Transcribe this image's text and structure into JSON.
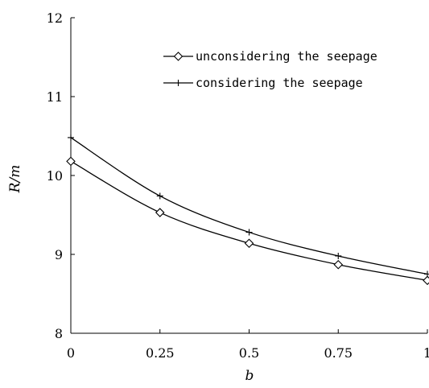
{
  "chart_data": {
    "type": "line",
    "xlabel": "b",
    "ylabel": "R/m",
    "xlim": [
      0,
      1
    ],
    "ylim": [
      8,
      12
    ],
    "x_ticks": [
      0,
      0.25,
      0.5,
      0.75,
      1
    ],
    "x_tick_labels": [
      "0",
      "0.25",
      "0.5",
      "0.75",
      "1"
    ],
    "y_ticks": [
      8,
      9,
      10,
      11,
      12
    ],
    "y_tick_labels": [
      "8",
      "9",
      "10",
      "11",
      "12"
    ],
    "grid": false,
    "legend_position": "top-right",
    "x": [
      0,
      0.25,
      0.5,
      0.75,
      1
    ],
    "series": [
      {
        "name": "unconsidering the seepage",
        "marker": "diamond",
        "values": [
          10.18,
          9.53,
          9.14,
          8.87,
          8.67
        ]
      },
      {
        "name": "considering the seepage",
        "marker": "plus",
        "values": [
          10.48,
          9.74,
          9.28,
          8.98,
          8.75
        ]
      }
    ]
  }
}
